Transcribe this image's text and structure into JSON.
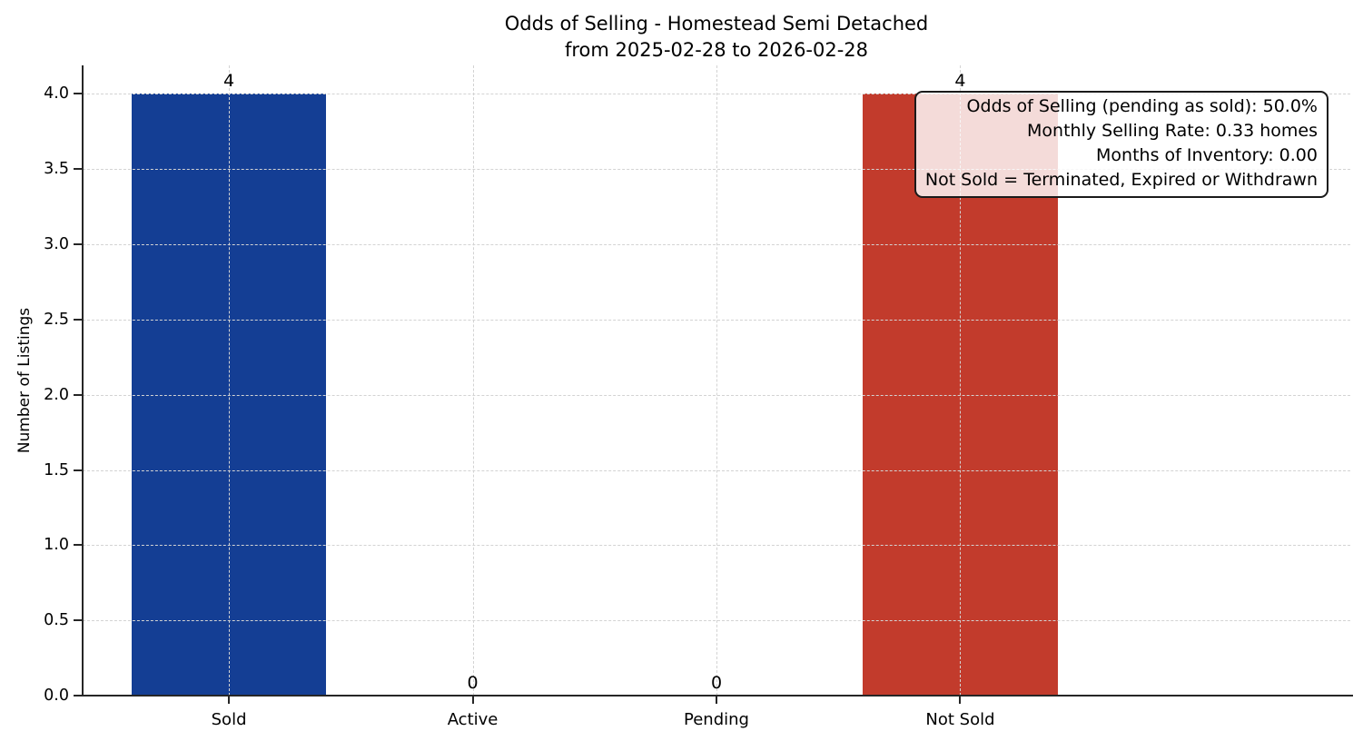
{
  "title": "Odds of Selling - Homestead Semi Detached",
  "subtitle": "from 2025-02-28 to 2026-02-28",
  "ylabel": "Number of Listings",
  "annotation_box": {
    "lines": [
      "Odds of Selling (pending as sold): 50.0%",
      "Monthly Selling Rate: 0.33 homes",
      "Months of Inventory: 0.00",
      "Not Sold = Terminated, Expired or Withdrawn"
    ]
  },
  "colors": {
    "sold_bar": "#143e94",
    "not_sold_bar": "#c23b2c",
    "grid": "#d3d3d3",
    "axis": "#262626",
    "text": "#000000",
    "annotation_bg": "rgba(255,255,255,0.82)",
    "annotation_border": "#1a1a1a"
  },
  "chart_data": {
    "type": "bar",
    "title": "Odds of Selling - Homestead Semi Detached\nfrom 2025-02-28 to 2026-02-28",
    "categories": [
      "Sold",
      "Active",
      "Pending",
      "Not Sold"
    ],
    "values": [
      4,
      0,
      0,
      4
    ],
    "value_labels": [
      "4",
      "0",
      "0",
      "4"
    ],
    "bar_colors": [
      "#143e94",
      null,
      null,
      "#c23b2c"
    ],
    "xlabel": "",
    "ylabel": "Number of Listings",
    "ylim": [
      0,
      4.19
    ],
    "yticks": [
      0.0,
      0.5,
      1.0,
      1.5,
      2.0,
      2.5,
      3.0,
      3.5,
      4.0
    ],
    "grid": {
      "style": "dashed",
      "axes": "both",
      "color": "#d3d3d3"
    },
    "legend": "none",
    "annotations": [
      "Odds of Selling (pending as sold): 50.0%",
      "Monthly Selling Rate: 0.33 homes",
      "Months of Inventory: 0.00",
      "Not Sold = Terminated, Expired or Withdrawn"
    ]
  }
}
